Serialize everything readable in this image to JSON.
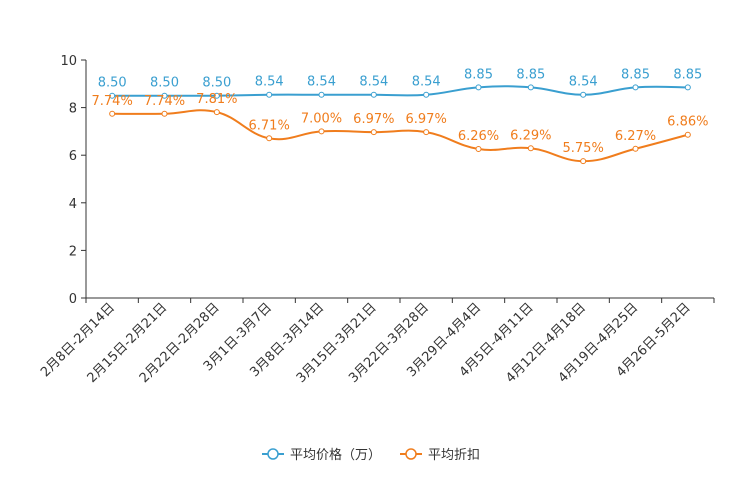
{
  "chart_data": {
    "type": "line",
    "title": "",
    "xlabel": "",
    "ylabel": "",
    "ylim": [
      0,
      10
    ],
    "yticks": [
      0,
      2,
      4,
      6,
      8,
      10
    ],
    "grid": false,
    "legend_position": "bottom-center",
    "categories": [
      "2月8日-2月14日",
      "2月15日-2月21日",
      "2月22日-2月28日",
      "3月1日-3月7日",
      "3月8日-3月14日",
      "3月15日-3月21日",
      "3月22日-3月28日",
      "3月29日-4月4日",
      "4月5日-4月11日",
      "4月12日-4月18日",
      "4月19日-4月25日",
      "4月26日-5月2日"
    ],
    "series": [
      {
        "name": "平均价格（万）",
        "color": "#3a9fd0",
        "values": [
          8.5,
          8.5,
          8.5,
          8.54,
          8.54,
          8.54,
          8.54,
          8.85,
          8.85,
          8.54,
          8.85,
          8.85
        ],
        "labels": [
          "8.50",
          "8.50",
          "8.50",
          "8.54",
          "8.54",
          "8.54",
          "8.54",
          "8.85",
          "8.85",
          "8.54",
          "8.85",
          "8.85"
        ]
      },
      {
        "name": "平均折扣",
        "color": "#f07d1d",
        "values": [
          7.74,
          7.74,
          7.81,
          6.71,
          7.0,
          6.97,
          6.97,
          6.26,
          6.29,
          5.75,
          6.27,
          6.86
        ],
        "labels": [
          "7.74%",
          "7.74%",
          "7.81%",
          "6.71%",
          "7.00%",
          "6.97%",
          "6.97%",
          "6.26%",
          "6.29%",
          "5.75%",
          "6.27%",
          "6.86%"
        ]
      }
    ]
  }
}
